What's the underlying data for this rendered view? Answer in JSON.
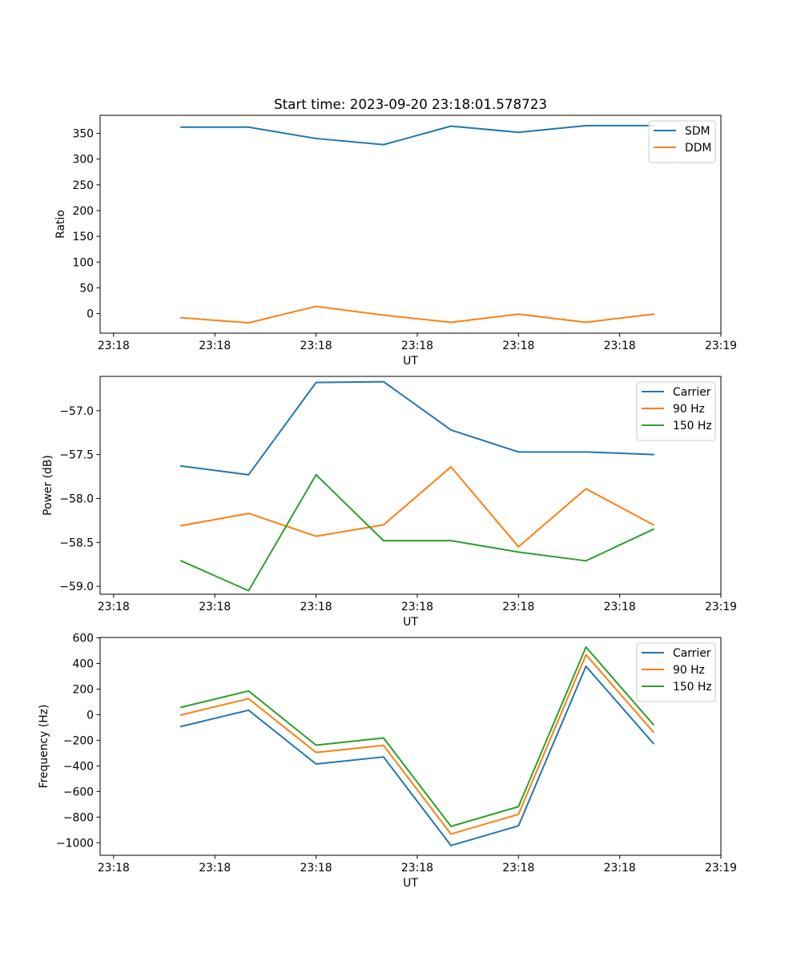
{
  "figure_title": "Start time: 2023-09-20 23:18:01.578723",
  "chart_data": [
    {
      "type": "line",
      "title": "Start time: 2023-09-20 23:18:01.578723",
      "xlabel": "UT",
      "ylabel": "Ratio",
      "x": [
        0.5,
        1.0,
        1.5,
        2.0,
        2.5,
        3.0,
        3.5,
        4.0
      ],
      "xlim": [
        -0.1,
        4.5
      ],
      "xticks": [
        0,
        0.75,
        1.5,
        2.25,
        3.0,
        3.75,
        4.5
      ],
      "xticklabels": [
        "23:18",
        "23:18",
        "23:18",
        "23:18",
        "23:18",
        "23:18",
        "23:19"
      ],
      "ylim": [
        -38,
        385
      ],
      "yticks": [
        0,
        50,
        100,
        150,
        200,
        250,
        300,
        350
      ],
      "legend_position": "top-right",
      "series": [
        {
          "name": "SDM",
          "color": "#1f77b4",
          "values": [
            362,
            362,
            340,
            328,
            364,
            352,
            365,
            365
          ]
        },
        {
          "name": "DDM",
          "color": "#ff7f0e",
          "values": [
            -8,
            -18,
            14,
            -3,
            -17,
            -1,
            -17,
            -1
          ]
        }
      ]
    },
    {
      "type": "line",
      "title": "",
      "xlabel": "UT",
      "ylabel": "Power (dB)",
      "x": [
        0.5,
        1.0,
        1.5,
        2.0,
        2.5,
        3.0,
        3.5,
        4.0
      ],
      "xlim": [
        -0.1,
        4.5
      ],
      "xticks": [
        0,
        0.75,
        1.5,
        2.25,
        3.0,
        3.75,
        4.5
      ],
      "xticklabels": [
        "23:18",
        "23:18",
        "23:18",
        "23:18",
        "23:18",
        "23:18",
        "23:19"
      ],
      "ylim": [
        -59.09,
        -56.61
      ],
      "yticks": [
        -59.0,
        -58.5,
        -58.0,
        -57.5,
        -57.0
      ],
      "yticklabels": [
        "−59.0",
        "−58.5",
        "−58.0",
        "−57.5",
        "−57.0"
      ],
      "legend_position": "top-right",
      "series": [
        {
          "name": "Carrier",
          "color": "#1f77b4",
          "values": [
            -57.63,
            -57.73,
            -56.68,
            -56.67,
            -57.22,
            -57.47,
            -57.47,
            -57.5
          ]
        },
        {
          "name": "90 Hz",
          "color": "#ff7f0e",
          "values": [
            -58.31,
            -58.17,
            -58.43,
            -58.3,
            -57.64,
            -58.55,
            -57.89,
            -58.3
          ]
        },
        {
          "name": "150 Hz",
          "color": "#2ca02c",
          "values": [
            -58.71,
            -59.05,
            -57.73,
            -58.48,
            -58.48,
            -58.61,
            -58.71,
            -58.35
          ]
        }
      ]
    },
    {
      "type": "line",
      "title": "",
      "xlabel": "UT",
      "ylabel": "Frequency (Hz)",
      "x": [
        0.5,
        1.0,
        1.5,
        2.0,
        2.5,
        3.0,
        3.5,
        4.0
      ],
      "xlim": [
        -0.1,
        4.5
      ],
      "xticks": [
        0,
        0.75,
        1.5,
        2.25,
        3.0,
        3.75,
        4.5
      ],
      "xticklabels": [
        "23:18",
        "23:18",
        "23:18",
        "23:18",
        "23:18",
        "23:18",
        "23:19"
      ],
      "ylim": [
        -1098,
        603
      ],
      "yticks": [
        -1000,
        -800,
        -600,
        -400,
        -200,
        0,
        200,
        400,
        600
      ],
      "yticklabels": [
        "−1000",
        "−800",
        "−600",
        "−400",
        "−200",
        "0",
        "200",
        "400",
        "600"
      ],
      "legend_position": "top-right",
      "series": [
        {
          "name": "Carrier",
          "color": "#1f77b4",
          "values": [
            -92,
            35,
            -385,
            -330,
            -1022,
            -868,
            378,
            -225
          ]
        },
        {
          "name": "90 Hz",
          "color": "#ff7f0e",
          "values": [
            -2,
            125,
            -295,
            -240,
            -932,
            -778,
            468,
            -135
          ]
        },
        {
          "name": "150 Hz",
          "color": "#2ca02c",
          "values": [
            58,
            185,
            -238,
            -182,
            -872,
            -718,
            528,
            -78
          ]
        }
      ]
    }
  ]
}
